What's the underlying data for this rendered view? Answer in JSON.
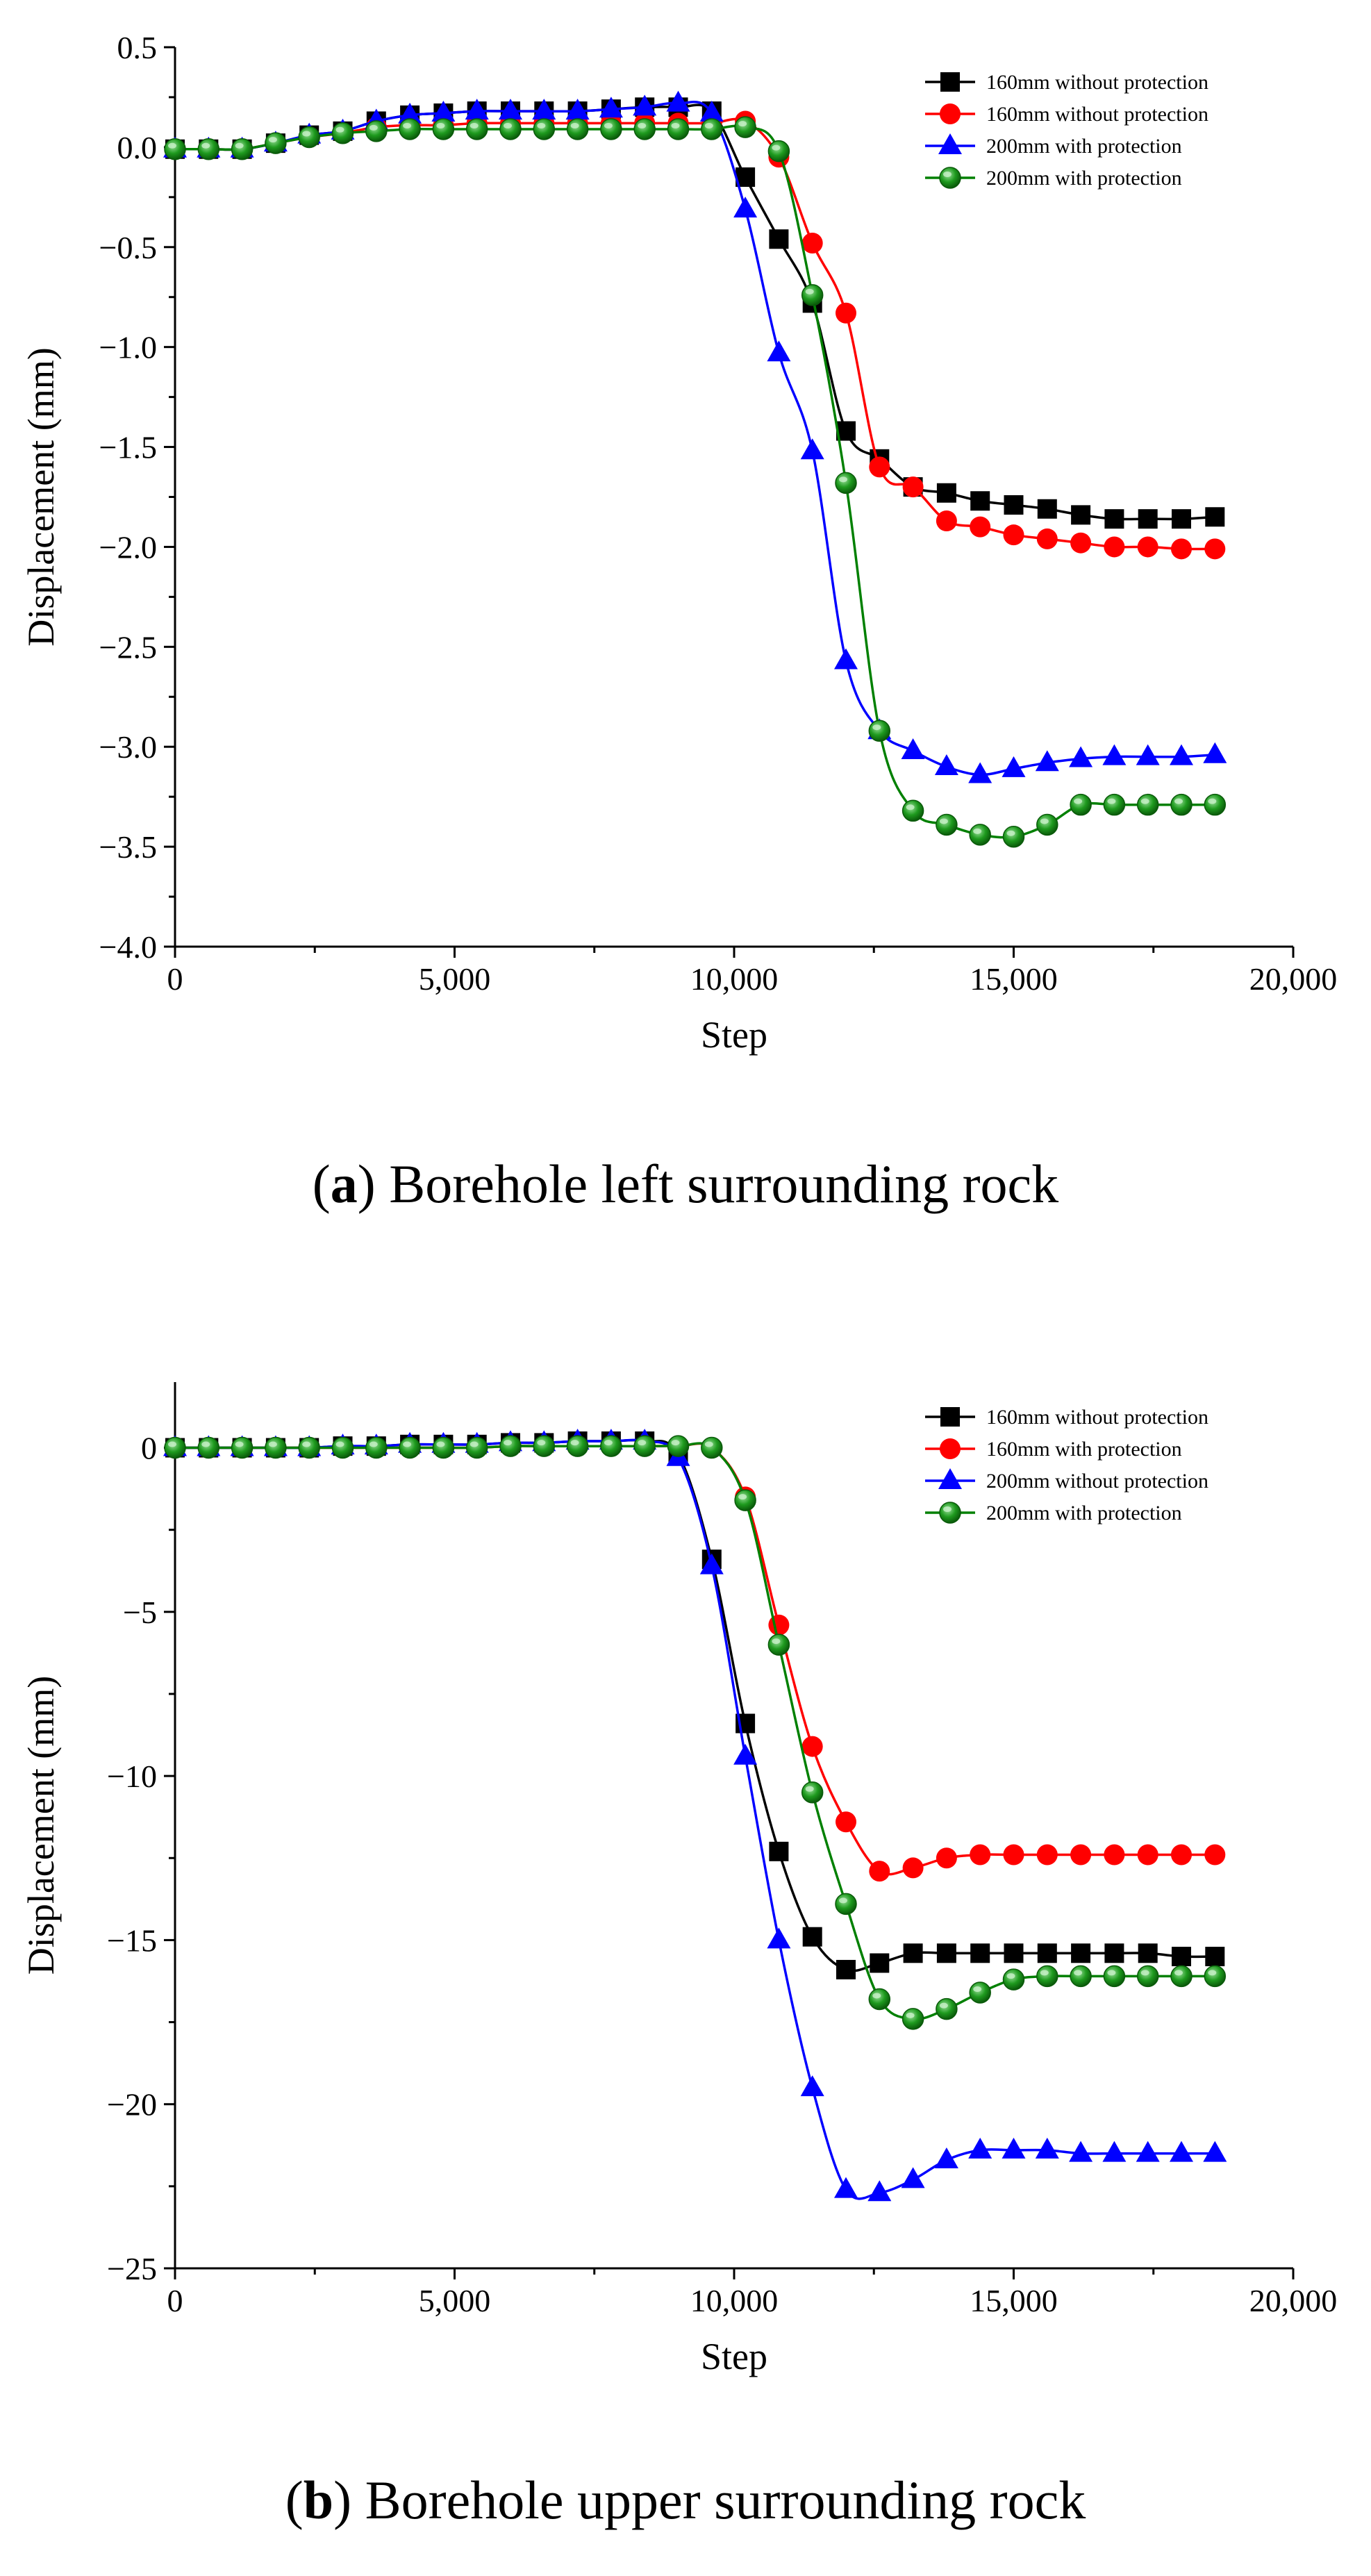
{
  "chart_data": [
    {
      "type": "line",
      "caption": {
        "letter": "a",
        "text": ") Borehole left surrounding rock",
        "open": "("
      },
      "xlabel": "Step",
      "ylabel": "Displacement (mm)",
      "xlim": [
        0,
        20000
      ],
      "ylim": [
        -4.0,
        0.5
      ],
      "xticks": [
        0,
        5000,
        10000,
        15000,
        20000
      ],
      "xtick_labels": [
        "0",
        "5,000",
        "10,000",
        "15,000",
        "20,000"
      ],
      "yticks": [
        0.5,
        0.0,
        -0.5,
        -1.0,
        -1.5,
        -2.0,
        -2.5,
        -3.0,
        -3.5,
        -4.0
      ],
      "ytick_labels": [
        "0.5",
        "0.0",
        "−0.5",
        "−1.0",
        "−1.5",
        "−2.0",
        "−2.5",
        "−3.0",
        "−3.5",
        "−4.0"
      ],
      "legend_position": "top-right",
      "x": [
        0,
        600,
        1200,
        1800,
        2400,
        3000,
        3600,
        4200,
        4800,
        5400,
        6000,
        6600,
        7200,
        7800,
        8400,
        9000,
        9600,
        10200,
        10800,
        11400,
        12000,
        12600,
        13200,
        13800,
        14400,
        15000,
        15600,
        16200,
        16800,
        17400,
        18000,
        18600
      ],
      "series": [
        {
          "name": "160mm without protection",
          "color": "#000000",
          "marker": "square",
          "values": [
            -0.01,
            -0.01,
            -0.01,
            0.02,
            0.06,
            0.08,
            0.13,
            0.16,
            0.17,
            0.18,
            0.18,
            0.18,
            0.18,
            0.19,
            0.2,
            0.2,
            0.18,
            -0.15,
            -0.46,
            -0.78,
            -1.42,
            -1.56,
            -1.7,
            -1.73,
            -1.77,
            -1.79,
            -1.81,
            -1.84,
            -1.86,
            -1.86,
            -1.86,
            -1.85
          ]
        },
        {
          "name": "160mm without protection",
          "color": "#ff0000",
          "marker": "circle",
          "values": [
            -0.01,
            -0.01,
            -0.01,
            0.02,
            0.05,
            0.07,
            0.1,
            0.11,
            0.11,
            0.12,
            0.12,
            0.12,
            0.12,
            0.12,
            0.12,
            0.12,
            0.12,
            0.13,
            -0.05,
            -0.48,
            -0.83,
            -1.6,
            -1.7,
            -1.87,
            -1.9,
            -1.94,
            -1.96,
            -1.98,
            -2.0,
            -2.0,
            -2.01,
            -2.01
          ]
        },
        {
          "name": "200mm with protection",
          "color": "#0000ff",
          "marker": "triangle",
          "values": [
            -0.01,
            -0.01,
            -0.01,
            0.02,
            0.06,
            0.08,
            0.13,
            0.16,
            0.17,
            0.18,
            0.18,
            0.18,
            0.18,
            0.19,
            0.2,
            0.22,
            0.17,
            -0.31,
            -1.03,
            -1.52,
            -2.57,
            -2.92,
            -3.02,
            -3.1,
            -3.14,
            -3.11,
            -3.08,
            -3.06,
            -3.05,
            -3.05,
            -3.05,
            -3.04
          ]
        },
        {
          "name": "200mm with protection",
          "color": "#008000",
          "marker": "ball",
          "values": [
            -0.01,
            -0.01,
            -0.01,
            0.02,
            0.05,
            0.07,
            0.08,
            0.09,
            0.09,
            0.09,
            0.09,
            0.09,
            0.09,
            0.09,
            0.09,
            0.09,
            0.09,
            0.1,
            -0.02,
            -0.74,
            -1.68,
            -2.92,
            -3.32,
            -3.39,
            -3.44,
            -3.45,
            -3.39,
            -3.29,
            -3.29,
            -3.29,
            -3.29,
            -3.29
          ]
        }
      ]
    },
    {
      "type": "line",
      "caption": {
        "letter": "b",
        "text": ") Borehole upper surrounding rock",
        "open": "("
      },
      "xlabel": "Step",
      "ylabel": "Displacement (mm)",
      "xlim": [
        0,
        20000
      ],
      "ylim": [
        -25,
        2
      ],
      "xticks": [
        0,
        5000,
        10000,
        15000,
        20000
      ],
      "xtick_labels": [
        "0",
        "5,000",
        "10,000",
        "15,000",
        "20,000"
      ],
      "yticks": [
        0,
        -5,
        -10,
        -15,
        -20,
        -25
      ],
      "ytick_labels": [
        "0",
        "−5",
        "−10",
        "−15",
        "−20",
        "−25"
      ],
      "legend_position": "top-right",
      "x": [
        0,
        600,
        1200,
        1800,
        2400,
        3000,
        3600,
        4200,
        4800,
        5400,
        6000,
        6600,
        7200,
        7800,
        8400,
        9000,
        9600,
        10200,
        10800,
        11400,
        12000,
        12600,
        13200,
        13800,
        14400,
        15000,
        15600,
        16200,
        16800,
        17400,
        18000,
        18600
      ],
      "series": [
        {
          "name": "160mm without protection",
          "color": "#000000",
          "marker": "square",
          "values": [
            0,
            0,
            0,
            0,
            0,
            0.05,
            0.05,
            0.1,
            0.1,
            0.1,
            0.15,
            0.15,
            0.2,
            0.2,
            0.2,
            -0.2,
            -3.4,
            -8.4,
            -12.3,
            -14.9,
            -15.9,
            -15.7,
            -15.4,
            -15.4,
            -15.4,
            -15.4,
            -15.4,
            -15.4,
            -15.4,
            -15.4,
            -15.5,
            -15.5
          ]
        },
        {
          "name": "160mm with protection",
          "color": "#ff0000",
          "marker": "circle",
          "values": [
            0,
            0,
            0,
            0,
            0,
            0,
            0,
            0,
            0,
            0,
            0.05,
            0.05,
            0.05,
            0.05,
            0.05,
            0.05,
            0,
            -1.5,
            -5.4,
            -9.1,
            -11.4,
            -12.9,
            -12.8,
            -12.5,
            -12.4,
            -12.4,
            -12.4,
            -12.4,
            -12.4,
            -12.4,
            -12.4,
            -12.4
          ]
        },
        {
          "name": "200mm without protection",
          "color": "#0000ff",
          "marker": "triangle",
          "values": [
            0,
            0,
            0,
            0,
            0,
            0.05,
            0.05,
            0.1,
            0.1,
            0.1,
            0.15,
            0.15,
            0.2,
            0.2,
            0.2,
            -0.3,
            -3.6,
            -9.4,
            -15.0,
            -19.5,
            -22.6,
            -22.7,
            -22.3,
            -21.7,
            -21.4,
            -21.4,
            -21.4,
            -21.5,
            -21.5,
            -21.5,
            -21.5,
            -21.5
          ]
        },
        {
          "name": "200mm with protection",
          "color": "#008000",
          "marker": "ball",
          "values": [
            0,
            0,
            0,
            0,
            0,
            0,
            0,
            0,
            0,
            0,
            0.05,
            0.05,
            0.05,
            0.05,
            0.05,
            0.05,
            0,
            -1.6,
            -6.0,
            -10.5,
            -13.9,
            -16.8,
            -17.4,
            -17.1,
            -16.6,
            -16.2,
            -16.1,
            -16.1,
            -16.1,
            -16.1,
            -16.1,
            -16.1
          ]
        }
      ]
    }
  ]
}
